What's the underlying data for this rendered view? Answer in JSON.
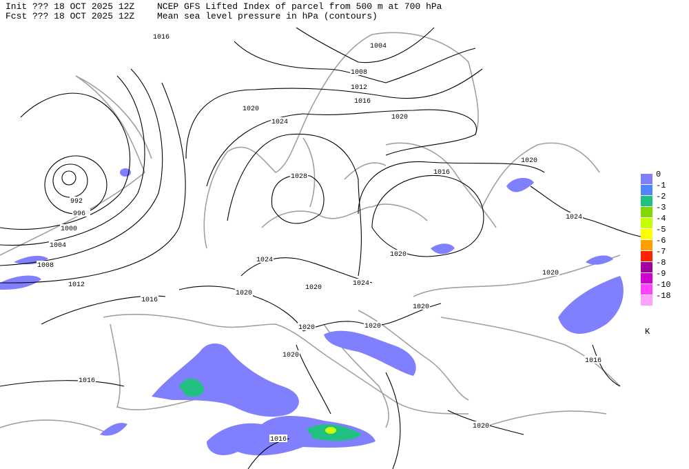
{
  "header": {
    "init_line": "Init  ??? 18 OCT 2025 12Z",
    "title_line": "NCEP GFS Lifted Index of parcel from 500 m at 700 hPa",
    "forecast_line": "Fcst ??? 18 OCT 2025 12Z",
    "subtitle_line": "Mean sea level pressure in hPa (contours)"
  },
  "contours": {
    "labels": [
      1016,
      1004,
      1008,
      1012,
      1016,
      1020,
      1020,
      1024,
      1028,
      992,
      996,
      1000,
      1004,
      1008,
      1012,
      1016,
      1020,
      1024,
      1016,
      1020,
      1024,
      1020,
      1024,
      1020,
      1020,
      1020,
      1020,
      1020,
      1020,
      1016,
      1016,
      1016,
      1020
    ]
  },
  "legend": {
    "unit": "K",
    "entries": [
      {
        "value": 0,
        "color": "#8080ff"
      },
      {
        "value": -1,
        "color": "#4d86ff"
      },
      {
        "value": -2,
        "color": "#20c080"
      },
      {
        "value": -3,
        "color": "#80d800"
      },
      {
        "value": -4,
        "color": "#c8ff00"
      },
      {
        "value": -5,
        "color": "#ffff00"
      },
      {
        "value": -6,
        "color": "#ffa000"
      },
      {
        "value": -7,
        "color": "#ff2000"
      },
      {
        "value": -8,
        "color": "#a000a0"
      },
      {
        "value": -9,
        "color": "#d000d0"
      },
      {
        "value": -10,
        "color": "#ff40ff"
      },
      {
        "value": -18,
        "color": "#ffa0ff"
      }
    ]
  }
}
